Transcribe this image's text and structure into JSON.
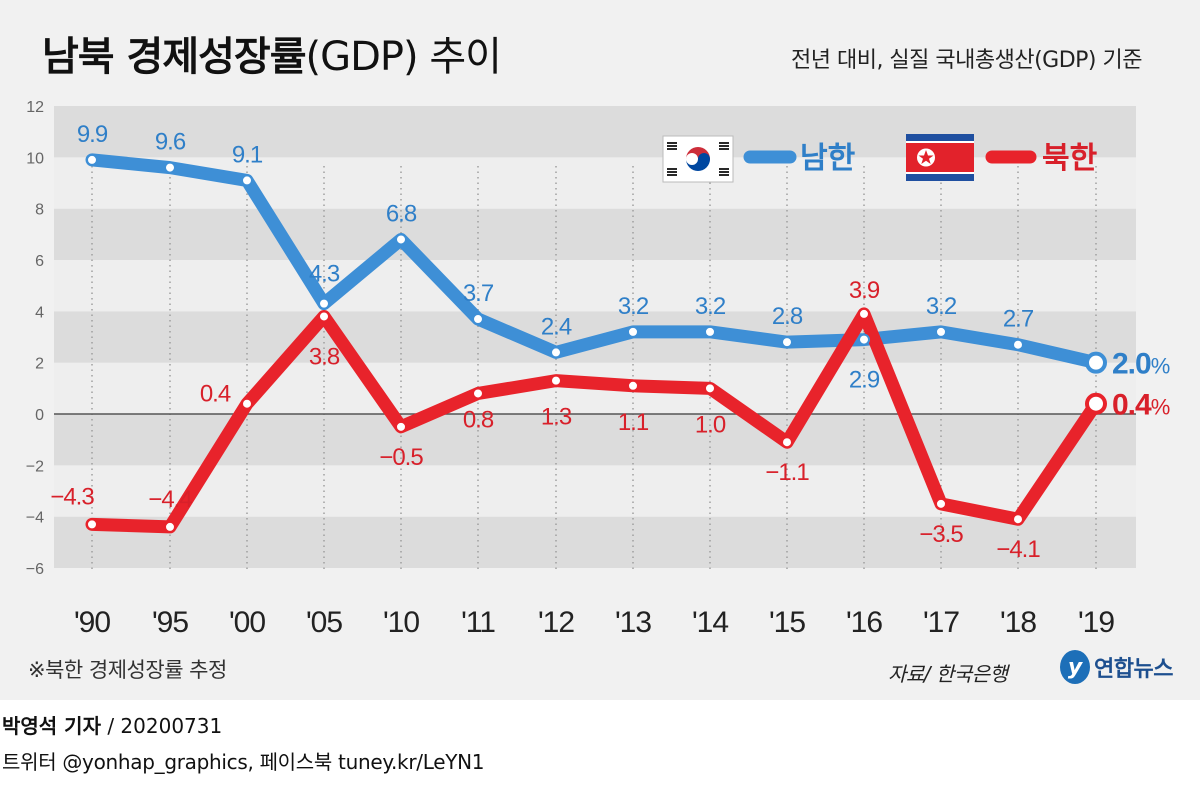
{
  "header": {
    "title_bold": "남북 경제성장률",
    "title_light": "(GDP) 추이",
    "subtitle": "전년 대비, 실질 국내총생산(GDP) 기준"
  },
  "footer": {
    "note": "※북한 경제성장률 추정",
    "source": "자료/ 한국은행",
    "logo_mark": "y",
    "logo_text": "연합뉴스",
    "reporter": "박영석 기자",
    "date": " / 20200731",
    "social": "트위터 @yonhap_graphics, 페이스북 tuney.kr/LeYN1"
  },
  "chart_data": {
    "type": "line",
    "title": "남북 경제성장률(GDP) 추이",
    "subtitle": "전년 대비, 실질 국내총생산(GDP) 기준",
    "categories": [
      "'90",
      "'95",
      "'00",
      "'05",
      "'10",
      "'11",
      "'12",
      "'13",
      "'14",
      "'15",
      "'16",
      "'17",
      "'18",
      "'19"
    ],
    "ylim": [
      -6,
      12
    ],
    "yticks": [
      12,
      10,
      8,
      6,
      4,
      2,
      0,
      -2,
      -4,
      -6
    ],
    "ytick_labels": [
      "12",
      "10",
      "8",
      "6",
      "4",
      "2",
      "0",
      "−2",
      "−4",
      "−6"
    ],
    "grid": "alternating horizontal bands",
    "legend_position": "top-right",
    "series": [
      {
        "name": "남한",
        "color": "#3e8fd6",
        "label_color": "#2f7fc8",
        "flag": "south-korea-flag-icon",
        "values": [
          9.9,
          9.6,
          9.1,
          4.3,
          6.8,
          3.7,
          2.4,
          3.2,
          3.2,
          2.8,
          2.9,
          3.2,
          2.7,
          2.0
        ],
        "labels": [
          "9.9",
          "9.6",
          "9.1",
          "4.3",
          "6.8",
          "3.7",
          "2.4",
          "3.2",
          "3.2",
          "2.8",
          "2.9",
          "3.2",
          "2.7",
          "2.0"
        ],
        "last_label_unit": "%"
      },
      {
        "name": "북한",
        "color": "#e8232b",
        "label_color": "#d8202a",
        "flag": "north-korea-flag-icon",
        "values": [
          -4.3,
          -4.4,
          0.4,
          3.8,
          -0.5,
          0.8,
          1.3,
          1.1,
          1.0,
          -1.1,
          3.9,
          -3.5,
          -4.1,
          0.4
        ],
        "labels": [
          "−4.3",
          "−4.4",
          "0.4",
          "3.8",
          "−0.5",
          "0.8",
          "1.3",
          "1.1",
          "1.0",
          "−1.1",
          "3.9",
          "−3.5",
          "−4.1",
          "0.4"
        ],
        "last_label_unit": "%"
      }
    ]
  }
}
